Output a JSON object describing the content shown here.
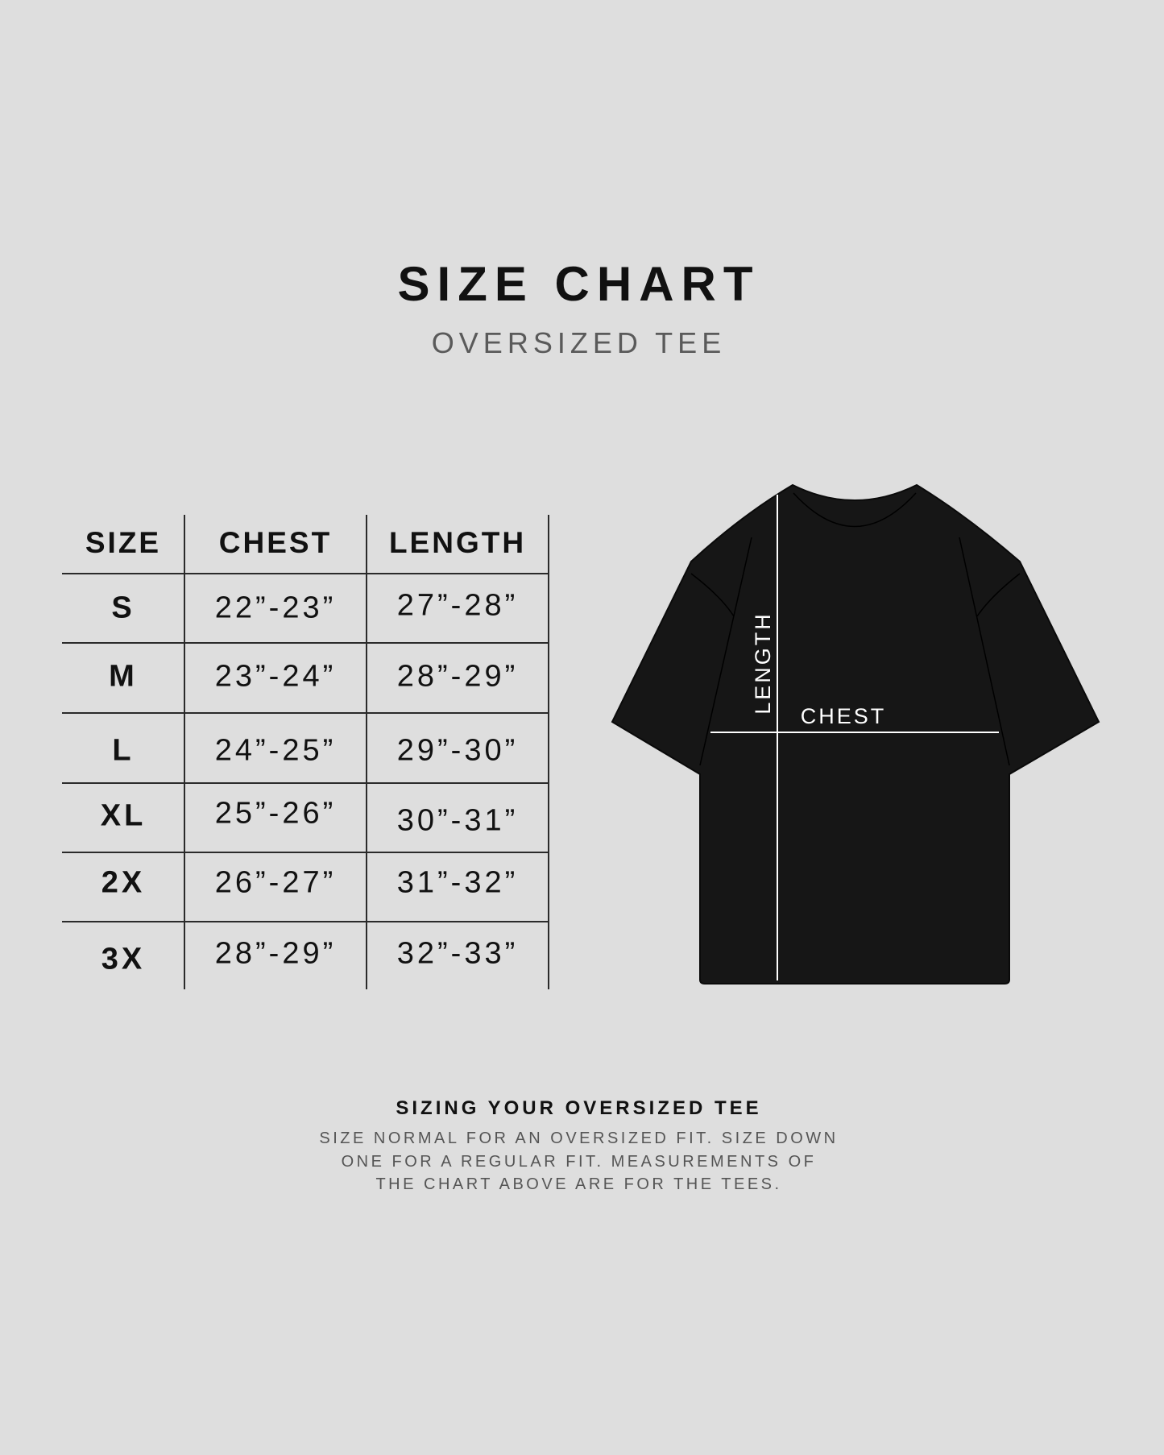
{
  "header": {
    "title": "SIZE CHART",
    "subtitle": "OVERSIZED TEE"
  },
  "table": {
    "headers": [
      "SIZE",
      "CHEST",
      "LENGTH"
    ],
    "rows": [
      {
        "size": "S",
        "chest": "22”-23”",
        "length": "27”-28”"
      },
      {
        "size": "M",
        "chest": "23”-24”",
        "length": "28”-29”"
      },
      {
        "size": "L",
        "chest": "24”-25”",
        "length": "29”-30”"
      },
      {
        "size": "XL",
        "chest": "25”-26”",
        "length": "30”-31”"
      },
      {
        "size": "2X",
        "chest": "26”-27”",
        "length": "31”-32”"
      },
      {
        "size": "3X",
        "chest": "28”-29”",
        "length": "32”-33”"
      }
    ]
  },
  "diagram": {
    "length_label": "LENGTH",
    "chest_label": "CHEST",
    "shirt_color": "#161616",
    "line_color": "#ffffff"
  },
  "footer": {
    "title": "SIZING YOUR OVERSIZED TEE",
    "lines": [
      "SIZE NORMAL FOR AN OVERSIZED FIT. SIZE DOWN",
      "ONE FOR A REGULAR FIT. MEASUREMENTS OF",
      "THE CHART ABOVE ARE FOR THE TEES."
    ]
  },
  "colors": {
    "background": "#dedede",
    "text": "#111111",
    "muted": "#555555"
  }
}
